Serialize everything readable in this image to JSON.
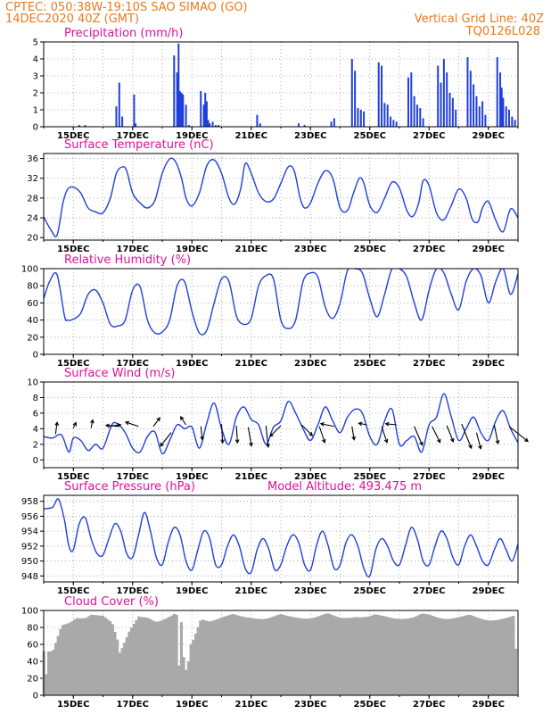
{
  "header": {
    "left_line1": "CPTEC:   050:38W-19:10S  SAO SIMAO (GO)",
    "left_line2": "14DEC2020 40Z (GMT)",
    "right_line1": "Vertical Grid Line: 40Z",
    "right_line2": "TQ0126L028"
  },
  "colors": {
    "header": "#e87a1e",
    "title": "#e0109a",
    "series": "#1f3fdc",
    "bar": "#1f3fdc",
    "cloud": "#a9a9a9",
    "wind_arrow": "#000000",
    "grid": "#9a9a9a"
  },
  "chart_data": [
    {
      "id": "precip",
      "type": "bar",
      "title": "Precipitation (mm/h)",
      "ylim": [
        0,
        5
      ],
      "yticks": [
        0,
        1,
        2,
        3,
        4,
        5
      ],
      "xlabels": [
        "15DEC",
        "17DEC",
        "19DEC",
        "21DEC",
        "23DEC",
        "25DEC",
        "27DEC",
        "29DEC"
      ],
      "x": [
        1.2,
        1.4,
        2.45,
        2.55,
        2.65,
        3.05,
        3.1,
        4.4,
        4.5,
        4.55,
        4.6,
        4.65,
        4.7,
        4.8,
        4.9,
        5.3,
        5.4,
        5.45,
        5.5,
        5.55,
        5.6,
        5.7,
        5.8,
        5.9,
        7.2,
        7.3,
        8.6,
        8.8,
        9.7,
        9.8,
        10.4,
        10.5,
        10.6,
        10.7,
        10.8,
        11.3,
        11.4,
        11.5,
        11.6,
        11.7,
        11.8,
        11.9,
        12.3,
        12.4,
        12.5,
        12.6,
        12.7,
        12.8,
        13.3,
        13.4,
        13.5,
        13.6,
        13.7,
        13.8,
        13.9,
        14.3,
        14.4,
        14.5,
        14.6,
        14.7,
        14.8,
        14.9,
        15.3,
        15.4,
        15.45,
        15.5,
        15.6,
        15.7,
        15.8,
        15.9
      ],
      "values": [
        0.1,
        0.1,
        1.2,
        2.6,
        0.6,
        1.9,
        0.2,
        4.2,
        3.2,
        4.9,
        2.1,
        2.0,
        1.9,
        1.3,
        0.1,
        2.1,
        1.3,
        2.0,
        1.5,
        0.4,
        0.2,
        0.3,
        0.1,
        0.1,
        0.7,
        0.2,
        0.2,
        0.1,
        0.3,
        0.5,
        4.0,
        3.3,
        1.1,
        1.0,
        0.9,
        3.8,
        3.6,
        1.4,
        1.3,
        0.6,
        0.4,
        0.3,
        2.9,
        3.2,
        1.8,
        1.3,
        1.1,
        0.5,
        3.6,
        2.6,
        4.0,
        3.2,
        2.0,
        1.7,
        1.0,
        4.1,
        3.3,
        2.5,
        1.8,
        1.2,
        1.5,
        0.7,
        4.1,
        3.2,
        2.3,
        1.7,
        1.2,
        1.0,
        0.6,
        0.4
      ]
    },
    {
      "id": "temperature",
      "type": "line",
      "title": "Surface Temperature (nC)",
      "ylim": [
        19.5,
        37
      ],
      "yticks": [
        20,
        24,
        28,
        32,
        36
      ],
      "xlabels": [
        "15DEC",
        "17DEC",
        "19DEC",
        "21DEC",
        "23DEC",
        "25DEC",
        "27DEC",
        "29DEC"
      ],
      "x": [
        0.0,
        0.25,
        0.45,
        0.65,
        0.8,
        1.0,
        1.25,
        1.5,
        1.75,
        2.0,
        2.25,
        2.45,
        2.65,
        2.8,
        3.0,
        3.25,
        3.5,
        3.75,
        4.0,
        4.25,
        4.45,
        4.65,
        4.8,
        5.0,
        5.25,
        5.5,
        5.75,
        6.0,
        6.25,
        6.45,
        6.65,
        6.8,
        7.0,
        7.25,
        7.5,
        7.75,
        8.0,
        8.25,
        8.45,
        8.65,
        8.8,
        9.0,
        9.25,
        9.5,
        9.75,
        10.0,
        10.25,
        10.45,
        10.65,
        10.8,
        11.0,
        11.25,
        11.5,
        11.75,
        12.0,
        12.25,
        12.45,
        12.65,
        12.8,
        13.0,
        13.25,
        13.5,
        13.75,
        14.0,
        14.25,
        14.45,
        14.65,
        14.8,
        15.0,
        15.25,
        15.5,
        15.75,
        16.0
      ],
      "values": [
        24.2,
        21.5,
        20.5,
        27.0,
        29.7,
        30.2,
        29.0,
        26.0,
        25.2,
        25.0,
        28.0,
        33.0,
        34.3,
        33.5,
        29.0,
        27.0,
        26.0,
        27.5,
        33.0,
        35.9,
        35.3,
        32.0,
        28.0,
        26.4,
        29.0,
        34.5,
        35.7,
        33.0,
        28.0,
        26.8,
        30.0,
        35.0,
        33.0,
        29.0,
        27.3,
        27.8,
        31.0,
        34.3,
        33.5,
        28.0,
        26.0,
        27.0,
        31.0,
        33.5,
        32.0,
        26.0,
        25.5,
        29.0,
        32.0,
        31.0,
        26.5,
        25.1,
        28.0,
        31.2,
        30.0,
        25.5,
        24.3,
        27.0,
        31.5,
        30.5,
        25.0,
        23.6,
        26.5,
        29.8,
        28.0,
        23.8,
        23.2,
        26.0,
        27.3,
        23.5,
        21.2,
        25.8,
        24.0
      ]
    },
    {
      "id": "humidity",
      "type": "line",
      "title": "Relative Humidity (%)",
      "ylim": [
        0,
        100
      ],
      "yticks": [
        0,
        20,
        40,
        60,
        80,
        100
      ],
      "xlabels": [
        "15DEC",
        "17DEC",
        "19DEC",
        "21DEC",
        "23DEC",
        "25DEC",
        "27DEC",
        "29DEC"
      ],
      "x": [
        0.0,
        0.2,
        0.45,
        0.7,
        0.8,
        1.0,
        1.25,
        1.5,
        1.75,
        2.0,
        2.25,
        2.5,
        2.75,
        3.0,
        3.25,
        3.5,
        3.75,
        4.0,
        4.25,
        4.5,
        4.75,
        5.0,
        5.25,
        5.5,
        5.75,
        6.0,
        6.25,
        6.5,
        6.75,
        7.0,
        7.25,
        7.5,
        7.75,
        8.0,
        8.25,
        8.5,
        8.75,
        9.0,
        9.25,
        9.5,
        9.75,
        10.0,
        10.25,
        10.5,
        10.75,
        11.0,
        11.25,
        11.5,
        11.75,
        12.0,
        12.25,
        12.5,
        12.75,
        13.0,
        13.25,
        13.5,
        13.75,
        14.0,
        14.25,
        14.5,
        14.75,
        15.0,
        15.25,
        15.5,
        15.75,
        16.0
      ],
      "values": [
        65,
        85,
        93,
        45,
        40,
        41,
        48,
        70,
        75,
        60,
        35,
        33,
        40,
        75,
        79,
        40,
        25,
        26,
        40,
        80,
        85,
        50,
        25,
        28,
        60,
        88,
        85,
        45,
        35,
        42,
        80,
        92,
        88,
        40,
        30,
        40,
        85,
        95,
        90,
        55,
        42,
        60,
        98,
        100,
        95,
        65,
        44,
        70,
        100,
        100,
        90,
        60,
        40,
        75,
        100,
        95,
        70,
        52,
        85,
        100,
        92,
        60,
        85,
        100,
        70,
        94
      ]
    },
    {
      "id": "wind",
      "type": "line",
      "title": "Surface Wind (m/s)",
      "ylim": [
        -1,
        10
      ],
      "yticks": [
        0,
        2,
        4,
        6,
        8,
        10
      ],
      "xlabels": [
        "15DEC",
        "17DEC",
        "19DEC",
        "21DEC",
        "23DEC",
        "25DEC",
        "27DEC",
        "29DEC"
      ],
      "x": [
        0.0,
        0.3,
        0.6,
        0.85,
        1.0,
        1.25,
        1.5,
        1.75,
        2.0,
        2.3,
        2.5,
        2.75,
        3.0,
        3.25,
        3.5,
        3.75,
        4.0,
        4.25,
        4.5,
        4.75,
        5.0,
        5.25,
        5.5,
        5.75,
        6.0,
        6.25,
        6.5,
        6.75,
        7.0,
        7.25,
        7.5,
        7.75,
        8.0,
        8.25,
        8.5,
        8.75,
        9.0,
        9.25,
        9.5,
        9.75,
        10.0,
        10.25,
        10.5,
        10.75,
        11.0,
        11.25,
        11.5,
        11.75,
        12.0,
        12.25,
        12.5,
        12.75,
        13.0,
        13.25,
        13.5,
        13.75,
        14.0,
        14.25,
        14.5,
        14.75,
        15.0,
        15.25,
        15.5,
        15.75,
        16.0
      ],
      "values": [
        3.0,
        2.8,
        3.2,
        1.0,
        2.8,
        2.5,
        1.2,
        2.0,
        1.5,
        4.5,
        4.6,
        3.5,
        1.5,
        1.0,
        3.0,
        3.6,
        0.8,
        2.5,
        4.5,
        4.0,
        4.2,
        1.5,
        4.7,
        7.3,
        4.0,
        2.0,
        5.5,
        6.8,
        5.2,
        4.5,
        2.0,
        4.2,
        5.0,
        7.5,
        6.0,
        4.0,
        2.5,
        4.5,
        6.8,
        5.0,
        3.5,
        5.5,
        6.5,
        6.0,
        3.0,
        2.0,
        5.0,
        6.5,
        2.0,
        2.5,
        3.0,
        1.0,
        4.5,
        5.5,
        8.5,
        5.5,
        2.5,
        4.0,
        5.5,
        3.5,
        2.5,
        5.0,
        6.3,
        4.0,
        2.2
      ],
      "arrows": [
        {
          "x": 0.4,
          "y": 3.3,
          "u": 0.3,
          "v": 2.2
        },
        {
          "x": 1.0,
          "y": 4.1,
          "u": 0.5,
          "v": 1.0
        },
        {
          "x": 1.6,
          "y": 4.1,
          "u": 0.3,
          "v": 1.5
        },
        {
          "x": 2.2,
          "y": 4.3,
          "u": 2.2,
          "v": 0.3
        },
        {
          "x": 2.5,
          "y": 4.3,
          "u": -2.2,
          "v": 0.2
        },
        {
          "x": 3.2,
          "y": 4.3,
          "u": -2.4,
          "v": 0.8
        },
        {
          "x": 3.7,
          "y": 4.3,
          "u": 1.2,
          "v": 1.6
        },
        {
          "x": 4.3,
          "y": 3.5,
          "u": -2.0,
          "v": -2.5
        },
        {
          "x": 4.8,
          "y": 4.5,
          "u": -1.0,
          "v": 1.5
        },
        {
          "x": 5.3,
          "y": 4.3,
          "u": 0.3,
          "v": -2.5
        },
        {
          "x": 6.0,
          "y": 4.6,
          "u": 0.2,
          "v": -3.5
        },
        {
          "x": 6.5,
          "y": 4.4,
          "u": 0.2,
          "v": -3.2
        },
        {
          "x": 6.9,
          "y": 4.2,
          "u": 0.6,
          "v": -3.5
        },
        {
          "x": 7.5,
          "y": 4.4,
          "u": 0.4,
          "v": -4.0
        },
        {
          "x": 8.0,
          "y": 4.4,
          "u": -2.0,
          "v": -2.0
        },
        {
          "x": 8.7,
          "y": 4.5,
          "u": 2.0,
          "v": -2.0
        },
        {
          "x": 9.3,
          "y": 4.3,
          "u": 1.0,
          "v": -3.0
        },
        {
          "x": 9.8,
          "y": 4.3,
          "u": -2.5,
          "v": 0.5
        },
        {
          "x": 10.4,
          "y": 4.3,
          "u": 0.4,
          "v": -2.5
        },
        {
          "x": 10.9,
          "y": 4.5,
          "u": -1.5,
          "v": 0.3
        },
        {
          "x": 11.4,
          "y": 4.3,
          "u": 1.0,
          "v": -3.0
        },
        {
          "x": 11.9,
          "y": 4.5,
          "u": -2.0,
          "v": 0.2
        },
        {
          "x": 12.5,
          "y": 4.3,
          "u": 1.5,
          "v": -3.5
        },
        {
          "x": 13.1,
          "y": 4.3,
          "u": 1.5,
          "v": -3.0
        },
        {
          "x": 13.6,
          "y": 4.4,
          "u": 1.2,
          "v": -3.0
        },
        {
          "x": 14.1,
          "y": 4.6,
          "u": 1.8,
          "v": -4.5
        },
        {
          "x": 14.6,
          "y": 3.5,
          "u": 0.8,
          "v": -3.0
        },
        {
          "x": 15.2,
          "y": 4.5,
          "u": 0.7,
          "v": -3.5
        },
        {
          "x": 15.7,
          "y": 4.3,
          "u": 3.5,
          "v": -2.8
        }
      ]
    },
    {
      "id": "pressure",
      "type": "line",
      "title": "Surface Pressure (hPa)",
      "subtitle": "Model Altitude: 493.475 m",
      "ylim": [
        947.2,
        958.8
      ],
      "yticks": [
        948,
        950,
        952,
        954,
        956,
        958
      ],
      "xlabels": [
        "15DEC",
        "17DEC",
        "19DEC",
        "21DEC",
        "23DEC",
        "25DEC",
        "27DEC",
        "29DEC"
      ],
      "x": [
        0.0,
        0.3,
        0.5,
        0.7,
        0.85,
        1.0,
        1.2,
        1.4,
        1.6,
        1.8,
        2.0,
        2.2,
        2.4,
        2.6,
        2.8,
        3.0,
        3.2,
        3.4,
        3.6,
        3.8,
        4.0,
        4.2,
        4.4,
        4.6,
        4.8,
        5.0,
        5.2,
        5.4,
        5.6,
        5.8,
        6.0,
        6.2,
        6.4,
        6.6,
        6.8,
        7.0,
        7.2,
        7.4,
        7.6,
        7.8,
        8.0,
        8.2,
        8.4,
        8.6,
        8.8,
        9.0,
        9.2,
        9.4,
        9.6,
        9.8,
        10.0,
        10.2,
        10.4,
        10.6,
        10.8,
        11.0,
        11.2,
        11.4,
        11.6,
        11.8,
        12.0,
        12.2,
        12.4,
        12.6,
        12.8,
        13.0,
        13.2,
        13.4,
        13.6,
        13.8,
        14.0,
        14.2,
        14.4,
        14.6,
        14.8,
        15.0,
        15.2,
        15.4,
        15.6,
        15.8,
        16.0
      ],
      "values": [
        957.0,
        957.2,
        958.3,
        955.5,
        952.0,
        951.5,
        955.0,
        955.8,
        953.0,
        951.0,
        950.8,
        953.0,
        955.0,
        954.0,
        951.0,
        950.5,
        953.5,
        956.5,
        954.0,
        950.5,
        949.5,
        952.5,
        954.5,
        953.5,
        950.0,
        948.8,
        951.5,
        954.0,
        953.0,
        949.5,
        949.5,
        952.0,
        953.5,
        952.0,
        949.0,
        948.5,
        951.5,
        953.0,
        951.5,
        948.8,
        949.5,
        952.0,
        953.5,
        952.5,
        949.5,
        948.8,
        952.0,
        954.0,
        952.0,
        949.0,
        949.5,
        952.5,
        953.5,
        952.0,
        949.0,
        948.0,
        951.5,
        953.0,
        952.0,
        950.0,
        949.5,
        952.0,
        954.5,
        953.0,
        950.0,
        949.5,
        952.0,
        954.0,
        953.0,
        950.5,
        949.5,
        952.0,
        953.5,
        952.0,
        950.0,
        949.5,
        951.5,
        953.0,
        951.5,
        950.0,
        952.3
      ]
    },
    {
      "id": "cloud",
      "type": "bar",
      "title": "Cloud Cover (%)",
      "ylim": [
        0,
        100
      ],
      "yticks": [
        0,
        20,
        40,
        60,
        80,
        100
      ],
      "xlabels": [
        "15DEC",
        "17DEC",
        "19DEC",
        "21DEC",
        "23DEC",
        "25DEC",
        "27DEC",
        "29DEC"
      ],
      "anchor_x": [
        0.0,
        0.3,
        0.6,
        0.9,
        1.1,
        1.4,
        1.7,
        2.0,
        2.3,
        2.6,
        2.9,
        3.2,
        3.5,
        3.8,
        4.1,
        4.4,
        4.6,
        4.8,
        5.0,
        5.3,
        5.6,
        6.0,
        6.5,
        7.0,
        7.5,
        8.0,
        8.5,
        9.0,
        9.5,
        10.0,
        10.5,
        11.0,
        11.5,
        12.0,
        12.5,
        13.0,
        13.5,
        14.0,
        14.5,
        15.0,
        15.5,
        16.0
      ],
      "anchor_values": [
        52,
        55,
        88,
        92,
        96,
        93,
        96,
        98,
        92,
        58,
        80,
        93,
        95,
        92,
        96,
        100,
        96,
        55,
        64,
        95,
        93,
        96,
        96,
        97,
        95,
        96,
        97,
        96,
        97,
        96,
        98,
        95,
        97,
        96,
        95,
        98,
        96,
        96,
        95,
        94,
        95,
        95
      ],
      "dips": [
        {
          "x": 4.55,
          "value": 35
        },
        {
          "x": 4.7,
          "value": 45
        },
        {
          "x": 4.8,
          "value": 30
        },
        {
          "x": 4.88,
          "value": 40
        },
        {
          "x": 2.55,
          "value": 50
        },
        {
          "x": 0.05,
          "value": 25
        },
        {
          "x": 15.9,
          "value": 55
        }
      ]
    }
  ]
}
